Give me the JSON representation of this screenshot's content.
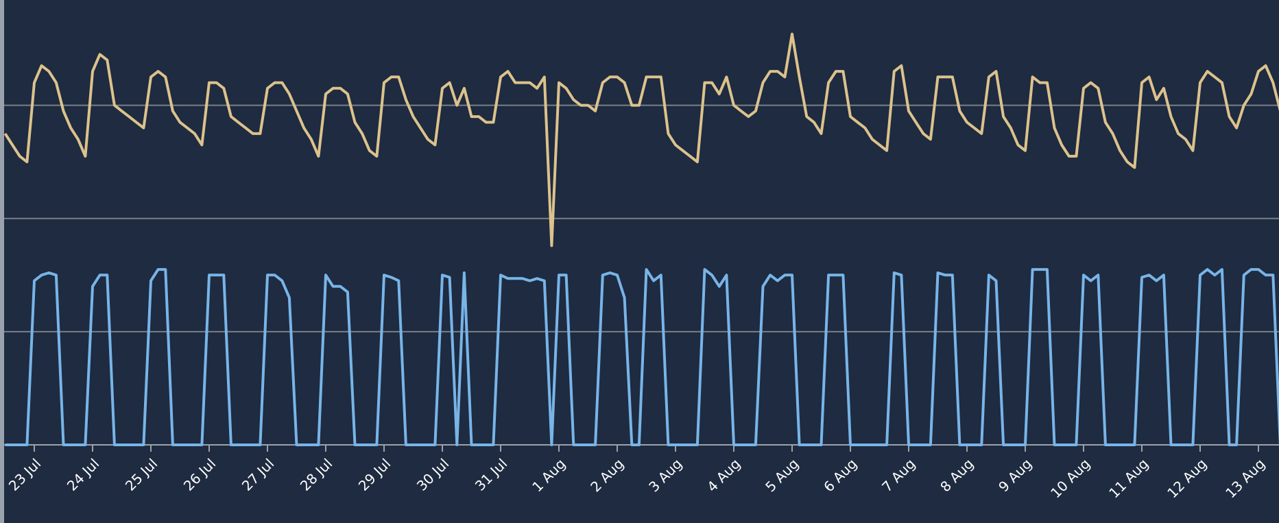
{
  "chart_data": {
    "type": "line",
    "categories": [
      null,
      null,
      null,
      null,
      "23 Jul",
      null,
      null,
      null,
      null,
      null,
      null,
      null,
      "24 Jul",
      null,
      null,
      null,
      null,
      null,
      null,
      null,
      "25 Jul",
      null,
      null,
      null,
      null,
      null,
      null,
      null,
      "26 Jul",
      null,
      null,
      null,
      null,
      null,
      null,
      null,
      "27 Jul",
      null,
      null,
      null,
      null,
      null,
      null,
      null,
      "28 Jul",
      null,
      null,
      null,
      null,
      null,
      null,
      null,
      "29 Jul",
      null,
      null,
      null,
      null,
      null,
      null,
      null,
      "30 Jul",
      null,
      null,
      null,
      null,
      null,
      null,
      null,
      "31 Jul",
      null,
      null,
      null,
      null,
      null,
      null,
      null,
      "1 Aug",
      null,
      null,
      null,
      null,
      null,
      null,
      null,
      "2 Aug",
      null,
      null,
      null,
      null,
      null,
      null,
      null,
      "3 Aug",
      null,
      null,
      null,
      null,
      null,
      null,
      null,
      "4 Aug",
      null,
      null,
      null,
      null,
      null,
      null,
      null,
      "5 Aug",
      null,
      null,
      null,
      null,
      null,
      null,
      null,
      "6 Aug",
      null,
      null,
      null,
      null,
      null,
      null,
      null,
      "7 Aug",
      null,
      null,
      null,
      null,
      null,
      null,
      null,
      "8 Aug",
      null,
      null,
      null,
      null,
      null,
      null,
      null,
      "9 Aug",
      null,
      null,
      null,
      null,
      null,
      null,
      null,
      "10 Aug",
      null,
      null,
      null,
      null,
      null,
      null,
      null,
      "11 Aug",
      null,
      null,
      null,
      null,
      null,
      null,
      null,
      "12 Aug",
      null,
      null,
      null,
      null,
      null,
      null,
      null,
      "13 Aug",
      null,
      null,
      null
    ],
    "series": [
      {
        "color": "#dcc28c",
        "values": [
          2.75,
          2.65,
          2.55,
          2.5,
          3.2,
          3.35,
          3.3,
          3.2,
          2.95,
          2.8,
          2.7,
          2.55,
          3.3,
          3.45,
          3.4,
          3.0,
          2.95,
          2.9,
          2.85,
          2.8,
          3.25,
          3.3,
          3.25,
          2.95,
          2.85,
          2.8,
          2.75,
          2.65,
          3.2,
          3.2,
          3.15,
          2.9,
          2.85,
          2.8,
          2.75,
          2.75,
          3.15,
          3.2,
          3.2,
          3.1,
          2.95,
          2.8,
          2.7,
          2.55,
          3.1,
          3.15,
          3.15,
          3.1,
          2.85,
          2.75,
          2.6,
          2.55,
          3.2,
          3.25,
          3.25,
          3.05,
          2.9,
          2.8,
          2.7,
          2.65,
          3.15,
          3.2,
          3.0,
          3.15,
          2.9,
          2.9,
          2.85,
          2.85,
          3.25,
          3.3,
          3.2,
          3.2,
          3.2,
          3.15,
          3.25,
          1.76,
          3.2,
          3.15,
          3.05,
          3.0,
          3.0,
          2.95,
          3.2,
          3.25,
          3.25,
          3.2,
          3.0,
          3.0,
          3.25,
          3.25,
          3.25,
          2.75,
          2.65,
          2.6,
          2.55,
          2.5,
          3.2,
          3.2,
          3.1,
          3.25,
          3.0,
          2.95,
          2.9,
          2.95,
          3.2,
          3.3,
          3.3,
          3.25,
          3.63,
          3.25,
          2.9,
          2.85,
          2.75,
          3.2,
          3.3,
          3.3,
          2.9,
          2.85,
          2.8,
          2.7,
          2.65,
          2.6,
          3.3,
          3.35,
          2.95,
          2.85,
          2.75,
          2.7,
          3.25,
          3.25,
          3.25,
          2.95,
          2.85,
          2.8,
          2.75,
          3.25,
          3.3,
          2.9,
          2.8,
          2.65,
          2.6,
          3.25,
          3.2,
          3.2,
          2.8,
          2.65,
          2.55,
          2.55,
          3.15,
          3.2,
          3.15,
          2.85,
          2.75,
          2.6,
          2.5,
          2.45,
          3.2,
          3.25,
          3.05,
          3.15,
          2.9,
          2.75,
          2.7,
          2.6,
          3.2,
          3.3,
          3.25,
          3.2,
          2.9,
          2.8,
          3.0,
          3.1,
          3.3,
          3.35,
          3.2,
          2.95
        ]
      },
      {
        "color": "#78b4e8",
        "values": [
          0,
          0,
          0,
          0,
          1.45,
          1.5,
          1.52,
          1.5,
          0,
          0,
          0,
          0,
          1.4,
          1.5,
          1.5,
          0,
          0,
          0,
          0,
          0,
          1.45,
          1.55,
          1.55,
          0,
          0,
          0,
          0,
          0,
          1.5,
          1.5,
          1.5,
          0,
          0,
          0,
          0,
          0,
          1.5,
          1.5,
          1.45,
          1.3,
          0,
          0,
          0,
          0,
          1.5,
          1.4,
          1.4,
          1.35,
          0,
          0,
          0,
          0,
          1.5,
          1.48,
          1.45,
          0,
          0,
          0,
          0,
          0,
          1.5,
          1.48,
          0,
          1.52,
          0,
          0,
          0,
          0,
          1.5,
          1.47,
          1.47,
          1.47,
          1.45,
          1.47,
          1.45,
          0,
          1.5,
          1.5,
          0,
          0,
          0,
          0,
          1.5,
          1.52,
          1.5,
          1.3,
          0,
          0,
          1.55,
          1.45,
          1.5,
          0,
          0,
          0,
          0,
          0,
          1.55,
          1.5,
          1.4,
          1.5,
          0,
          0,
          0,
          0,
          1.4,
          1.5,
          1.45,
          1.5,
          1.5,
          0,
          0,
          0,
          0,
          1.5,
          1.5,
          1.5,
          0,
          0,
          0,
          0,
          0,
          0,
          1.52,
          1.5,
          0,
          0,
          0,
          0,
          1.52,
          1.5,
          1.5,
          0,
          0,
          0,
          0,
          1.5,
          1.45,
          0,
          0,
          0,
          0,
          1.55,
          1.55,
          1.55,
          0,
          0,
          0,
          0,
          1.5,
          1.45,
          1.5,
          0,
          0,
          0,
          0,
          0,
          1.48,
          1.5,
          1.45,
          1.5,
          0,
          0,
          0,
          0,
          1.5,
          1.55,
          1.5,
          1.55,
          0,
          0,
          1.5,
          1.55,
          1.55,
          1.5,
          1.5,
          0
        ]
      }
    ],
    "ylim": [
      0,
      3.9
    ],
    "yticks": [
      0,
      1,
      2,
      3
    ],
    "grid": true
  }
}
